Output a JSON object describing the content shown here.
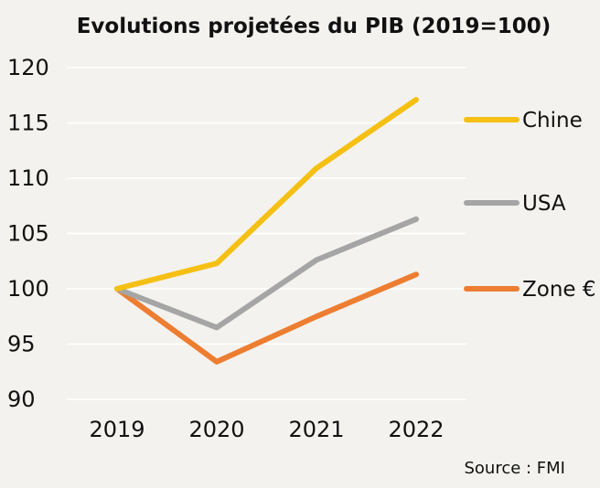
{
  "chart_data": {
    "type": "line",
    "title": "Evolutions projetées du PIB (2019=100)",
    "categories": [
      "2019",
      "2020",
      "2021",
      "2022"
    ],
    "ylim": [
      90,
      120
    ],
    "yticks": [
      "90",
      "95",
      "100",
      "105",
      "110",
      "115",
      "120"
    ],
    "grid": true,
    "legend_position": "right",
    "series": [
      {
        "name": "Chine",
        "color": "#f5c013",
        "values": [
          100,
          102.3,
          110.9,
          117.1
        ]
      },
      {
        "name": "USA",
        "color": "#a5a5a5",
        "values": [
          100,
          96.5,
          102.6,
          106.3
        ]
      },
      {
        "name": "Zone €",
        "color": "#ed7d31",
        "values": [
          100,
          93.4,
          97.5,
          101.3
        ]
      }
    ],
    "source": "Source : FMI"
  }
}
